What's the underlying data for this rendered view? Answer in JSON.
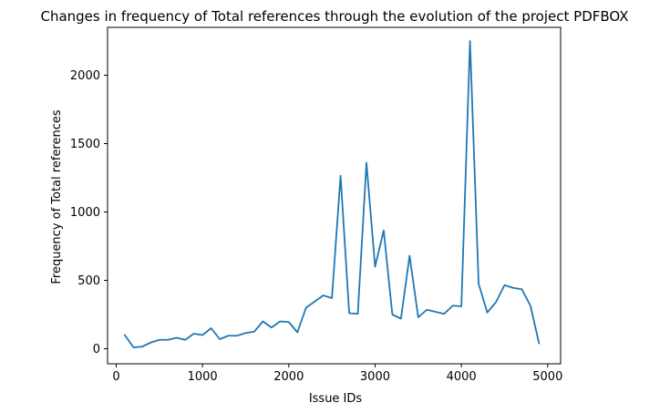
{
  "chart_data": {
    "type": "line",
    "title": "Changes in frequency of Total references through the evolution of the project PDFBOX",
    "xlabel": "Issue IDs",
    "ylabel": "Frequency of Total references",
    "xlim": [
      -100,
      5150
    ],
    "ylim": [
      -110,
      2350
    ],
    "xticks": [
      0,
      1000,
      2000,
      3000,
      4000,
      5000
    ],
    "yticks": [
      0,
      500,
      1000,
      1500,
      2000
    ],
    "grid": false,
    "legend": "none",
    "series": [
      {
        "color": "#1f77b4",
        "x": [
          100,
          200,
          300,
          400,
          500,
          600,
          700,
          800,
          900,
          1000,
          1100,
          1200,
          1300,
          1400,
          1500,
          1600,
          1700,
          1800,
          1900,
          2000,
          2100,
          2200,
          2300,
          2400,
          2500,
          2600,
          2700,
          2800,
          2900,
          3000,
          3100,
          3200,
          3300,
          3400,
          3500,
          3600,
          3700,
          3800,
          3900,
          4000,
          4100,
          4200,
          4300,
          4400,
          4500,
          4600,
          4700,
          4800,
          4900
        ],
        "y": [
          100,
          10,
          15,
          45,
          65,
          65,
          80,
          65,
          110,
          100,
          150,
          70,
          95,
          95,
          115,
          125,
          200,
          155,
          200,
          195,
          120,
          300,
          345,
          390,
          370,
          1265,
          260,
          255,
          1360,
          600,
          865,
          250,
          220,
          680,
          230,
          285,
          270,
          255,
          315,
          310,
          2250,
          475,
          265,
          340,
          465,
          445,
          435,
          315,
          40
        ]
      }
    ]
  }
}
